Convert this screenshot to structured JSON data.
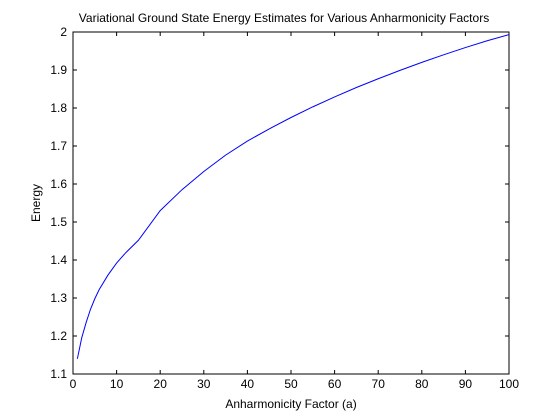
{
  "chart_data": {
    "type": "line",
    "title": "Variational Ground State Energy Estimates for Various Anharmonicity Factors",
    "xlabel": "Anharmonicity Factor (a)",
    "ylabel": "Energy",
    "xlim": [
      0,
      100
    ],
    "ylim": [
      1.1,
      2.0
    ],
    "xticks": [
      0,
      10,
      20,
      30,
      40,
      50,
      60,
      70,
      80,
      90,
      100
    ],
    "yticks": [
      1.1,
      1.2,
      1.3,
      1.4,
      1.5,
      1.6,
      1.7,
      1.8,
      1.9,
      2.0
    ],
    "xtick_labels": [
      "0",
      "10",
      "20",
      "30",
      "40",
      "50",
      "60",
      "70",
      "80",
      "90",
      "100"
    ],
    "ytick_labels": [
      "1.1",
      "1.2",
      "1.3",
      "1.4",
      "1.5",
      "1.6",
      "1.7",
      "1.8",
      "1.9",
      "2"
    ],
    "grid": false,
    "legend": "none",
    "series": [
      {
        "color": "#0000ff",
        "x": [
          1,
          2,
          3,
          4,
          5,
          6,
          8,
          10,
          12,
          15,
          20,
          25,
          30,
          35,
          40,
          45,
          50,
          55,
          60,
          65,
          70,
          75,
          80,
          85,
          90,
          95,
          100
        ],
        "y": [
          1.14,
          1.195,
          1.235,
          1.27,
          1.298,
          1.322,
          1.36,
          1.392,
          1.418,
          1.452,
          1.53,
          1.585,
          1.633,
          1.676,
          1.713,
          1.745,
          1.775,
          1.803,
          1.829,
          1.854,
          1.877,
          1.899,
          1.92,
          1.94,
          1.959,
          1.977,
          1.993
        ]
      }
    ]
  }
}
